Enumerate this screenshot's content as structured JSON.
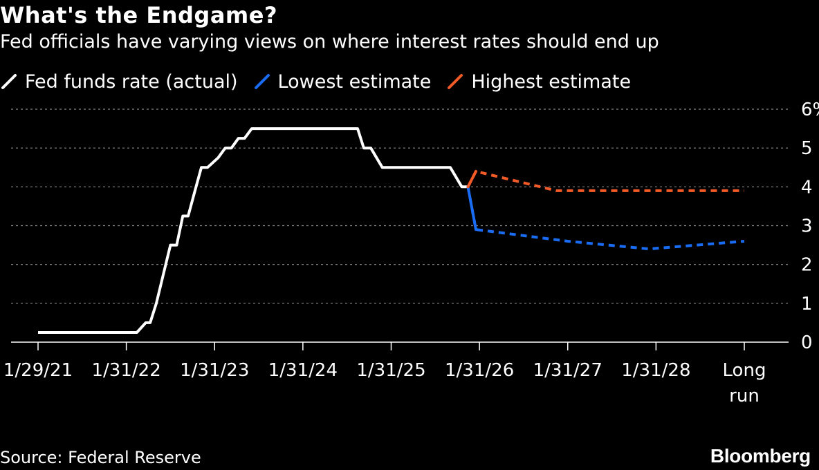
{
  "colors": {
    "background": "#000000",
    "actual": "#ffffff",
    "lowest": "#1a6cf2",
    "highest": "#f25a28",
    "grid": "#8a8a8a"
  },
  "source": "Source: Federal Reserve",
  "brand": "Bloomberg",
  "chart_data": {
    "type": "line",
    "title": "What's the Endgame?",
    "subtitle": "Fed officials have varying views on where interest rates should end up",
    "xlabel": "",
    "ylabel": "",
    "ylim": [
      0,
      6
    ],
    "y_ticks": [
      "0",
      "1",
      "2",
      "3",
      "4",
      "5",
      "6%"
    ],
    "x_ticks": [
      {
        "label": "1/29/21",
        "x": 2021.08
      },
      {
        "label": "1/31/22",
        "x": 2022.08
      },
      {
        "label": "1/31/23",
        "x": 2023.08
      },
      {
        "label": "1/31/24",
        "x": 2024.08
      },
      {
        "label": "1/31/25",
        "x": 2025.08
      },
      {
        "label": "1/31/26",
        "x": 2026.08
      },
      {
        "label": "1/31/27",
        "x": 2027.08
      },
      {
        "label": "1/31/28",
        "x": 2028.08
      },
      {
        "label": "Long run",
        "x": 2029.08
      }
    ],
    "xlim": [
      2021.08,
      2029.5
    ],
    "grid": true,
    "legend_position": "top-left",
    "series": [
      {
        "name": "Fed funds rate (actual)",
        "key": "actual",
        "style": "solid",
        "points": [
          [
            2021.08,
            0.25
          ],
          [
            2022.2,
            0.25
          ],
          [
            2022.3,
            0.5
          ],
          [
            2022.35,
            0.5
          ],
          [
            2022.42,
            1.0
          ],
          [
            2022.5,
            1.75
          ],
          [
            2022.58,
            2.5
          ],
          [
            2022.65,
            2.5
          ],
          [
            2022.72,
            3.25
          ],
          [
            2022.78,
            3.25
          ],
          [
            2022.87,
            4.0
          ],
          [
            2022.93,
            4.5
          ],
          [
            2023.0,
            4.5
          ],
          [
            2023.12,
            4.75
          ],
          [
            2023.2,
            5.0
          ],
          [
            2023.27,
            5.0
          ],
          [
            2023.35,
            5.25
          ],
          [
            2023.42,
            5.25
          ],
          [
            2023.5,
            5.5
          ],
          [
            2024.7,
            5.5
          ],
          [
            2024.77,
            5.0
          ],
          [
            2024.85,
            5.0
          ],
          [
            2024.98,
            4.5
          ],
          [
            2025.75,
            4.5
          ],
          [
            2025.88,
            4.0
          ],
          [
            2025.95,
            4.0
          ]
        ]
      },
      {
        "name": "Lowest estimate",
        "key": "lowest",
        "style": "dashed",
        "points": [
          [
            2025.95,
            4.0
          ],
          [
            2026.04,
            2.9
          ],
          [
            2027.08,
            2.6
          ],
          [
            2028.0,
            2.4
          ],
          [
            2029.08,
            2.6
          ]
        ]
      },
      {
        "name": "Highest estimate",
        "key": "highest",
        "style": "dashed",
        "points": [
          [
            2025.95,
            4.0
          ],
          [
            2026.04,
            4.4
          ],
          [
            2026.95,
            3.9
          ],
          [
            2029.08,
            3.9
          ]
        ]
      }
    ]
  }
}
